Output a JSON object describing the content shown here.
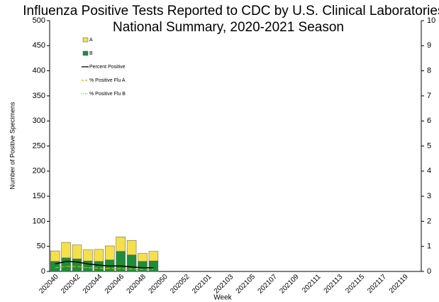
{
  "chart_data": {
    "type": "stacked-bar-line",
    "title_lines": [
      "Influenza Positive Tests Reported to CDC by U.S. Clinical Laboratories,",
      "National Summary, 2020-2021 Season"
    ],
    "y_label": "Number of Positive Specimens",
    "x_label": "Week",
    "categories": [
      "202040",
      null,
      "202042",
      null,
      "202044",
      null,
      "202046",
      null,
      "202048",
      null,
      "202050",
      null,
      "202052",
      null,
      "202101",
      null,
      "202103",
      null,
      "202105",
      null,
      "202107",
      null,
      "202109",
      null,
      "202111",
      null,
      "202113",
      null,
      "202115",
      null,
      "202117",
      null,
      "202119",
      null
    ],
    "ylim": [
      0,
      500
    ],
    "yticks": [
      0,
      50,
      100,
      150,
      200,
      250,
      300,
      350,
      400,
      450,
      500
    ],
    "y2lim": [
      0,
      10
    ],
    "y2ticks": [
      0,
      1,
      2,
      3,
      4,
      5,
      6,
      7,
      8,
      9,
      10
    ],
    "series": [
      {
        "name": "A",
        "kind": "bar",
        "color": "#f5e04a",
        "values": [
          21,
          31,
          28,
          22,
          24,
          28,
          29,
          29,
          16,
          19,
          null,
          null,
          null,
          null,
          null,
          null,
          null,
          null,
          null,
          null,
          null,
          null,
          null,
          null,
          null,
          null,
          null,
          null,
          null,
          null,
          null,
          null,
          null,
          null
        ]
      },
      {
        "name": "B",
        "kind": "bar",
        "color": "#1e8c3a",
        "values": [
          20,
          27,
          25,
          21,
          20,
          23,
          40,
          33,
          20,
          21,
          null,
          null,
          null,
          null,
          null,
          null,
          null,
          null,
          null,
          null,
          null,
          null,
          null,
          null,
          null,
          null,
          null,
          null,
          null,
          null,
          null,
          null,
          null,
          null
        ]
      },
      {
        "name": "Percent Positive",
        "kind": "line",
        "axis": "y2",
        "color": "#000000",
        "dash": "solid",
        "values": [
          0.3,
          0.4,
          0.38,
          0.3,
          0.25,
          0.22,
          0.22,
          0.18,
          0.15,
          0.15,
          null,
          null,
          null,
          null,
          null,
          null,
          null,
          null,
          null,
          null,
          null,
          null,
          null,
          null,
          null,
          null,
          null,
          null,
          null,
          null,
          null,
          null,
          null,
          null
        ]
      },
      {
        "name": "% Positive Flu A",
        "kind": "line",
        "axis": "y2",
        "color": "#f5a800",
        "dash": "dashed",
        "values": [
          0.15,
          0.2,
          0.2,
          0.15,
          0.13,
          0.12,
          0.1,
          0.1,
          0.08,
          0.08,
          null,
          null,
          null,
          null,
          null,
          null,
          null,
          null,
          null,
          null,
          null,
          null,
          null,
          null,
          null,
          null,
          null,
          null,
          null,
          null,
          null,
          null,
          null,
          null
        ]
      },
      {
        "name": "% Positive Flu B",
        "kind": "line",
        "axis": "y2",
        "color": "#33cc33",
        "dash": "dotted",
        "values": [
          0.15,
          0.2,
          0.18,
          0.15,
          0.12,
          0.1,
          0.12,
          0.08,
          0.07,
          0.07,
          null,
          null,
          null,
          null,
          null,
          null,
          null,
          null,
          null,
          null,
          null,
          null,
          null,
          null,
          null,
          null,
          null,
          null,
          null,
          null,
          null,
          null,
          null,
          null
        ]
      }
    ]
  }
}
